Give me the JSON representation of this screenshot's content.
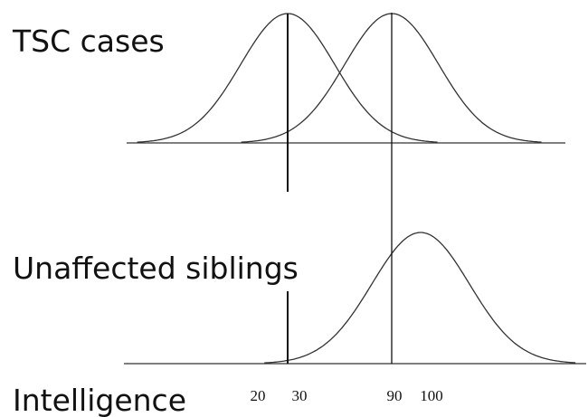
{
  "labels": {
    "top": "TSC cases",
    "middle": "Unaffected siblings",
    "axis": "Intelligence"
  },
  "ticks": [
    "20",
    "30",
    "90",
    "100"
  ]
}
